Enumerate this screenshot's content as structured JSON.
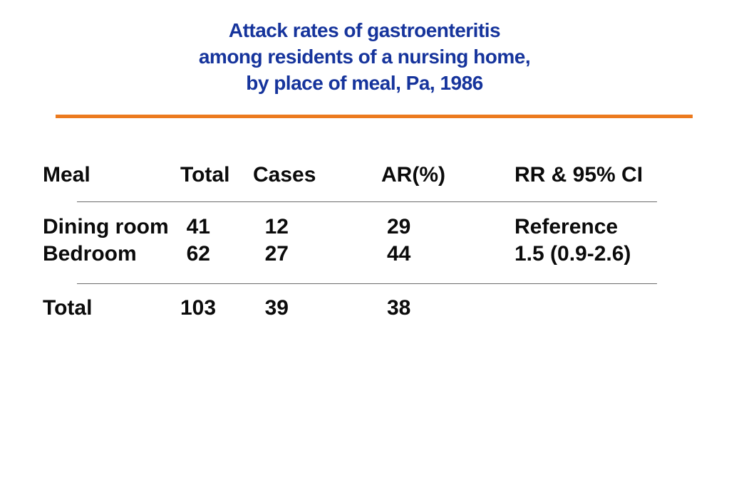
{
  "slide": {
    "title_lines": [
      "Attack rates of gastroenteritis",
      "among residents of a nursing home,",
      "by place of meal, Pa, 1986"
    ],
    "colors": {
      "title_blue": "#16349C",
      "accent_orange": "#EC7A1E",
      "divider_gray": "#6B6B6B",
      "text_black": "#0B0B0B",
      "background": "#FFFFFF"
    }
  },
  "table": {
    "headers": [
      "Meal",
      "Total",
      "Cases",
      "AR(%)",
      "RR & 95% CI"
    ],
    "rows": [
      {
        "meal": "Dining room",
        "total": "41",
        "cases": "12",
        "ar": "29",
        "rr": "Reference"
      },
      {
        "meal": "Bedroom",
        "total": "62",
        "cases": "27",
        "ar": "44",
        "rr": "1.5 (0.9-2.6)"
      }
    ],
    "total_row": {
      "meal": "Total",
      "total": "103",
      "cases": "39",
      "ar": "38",
      "rr": ""
    }
  }
}
